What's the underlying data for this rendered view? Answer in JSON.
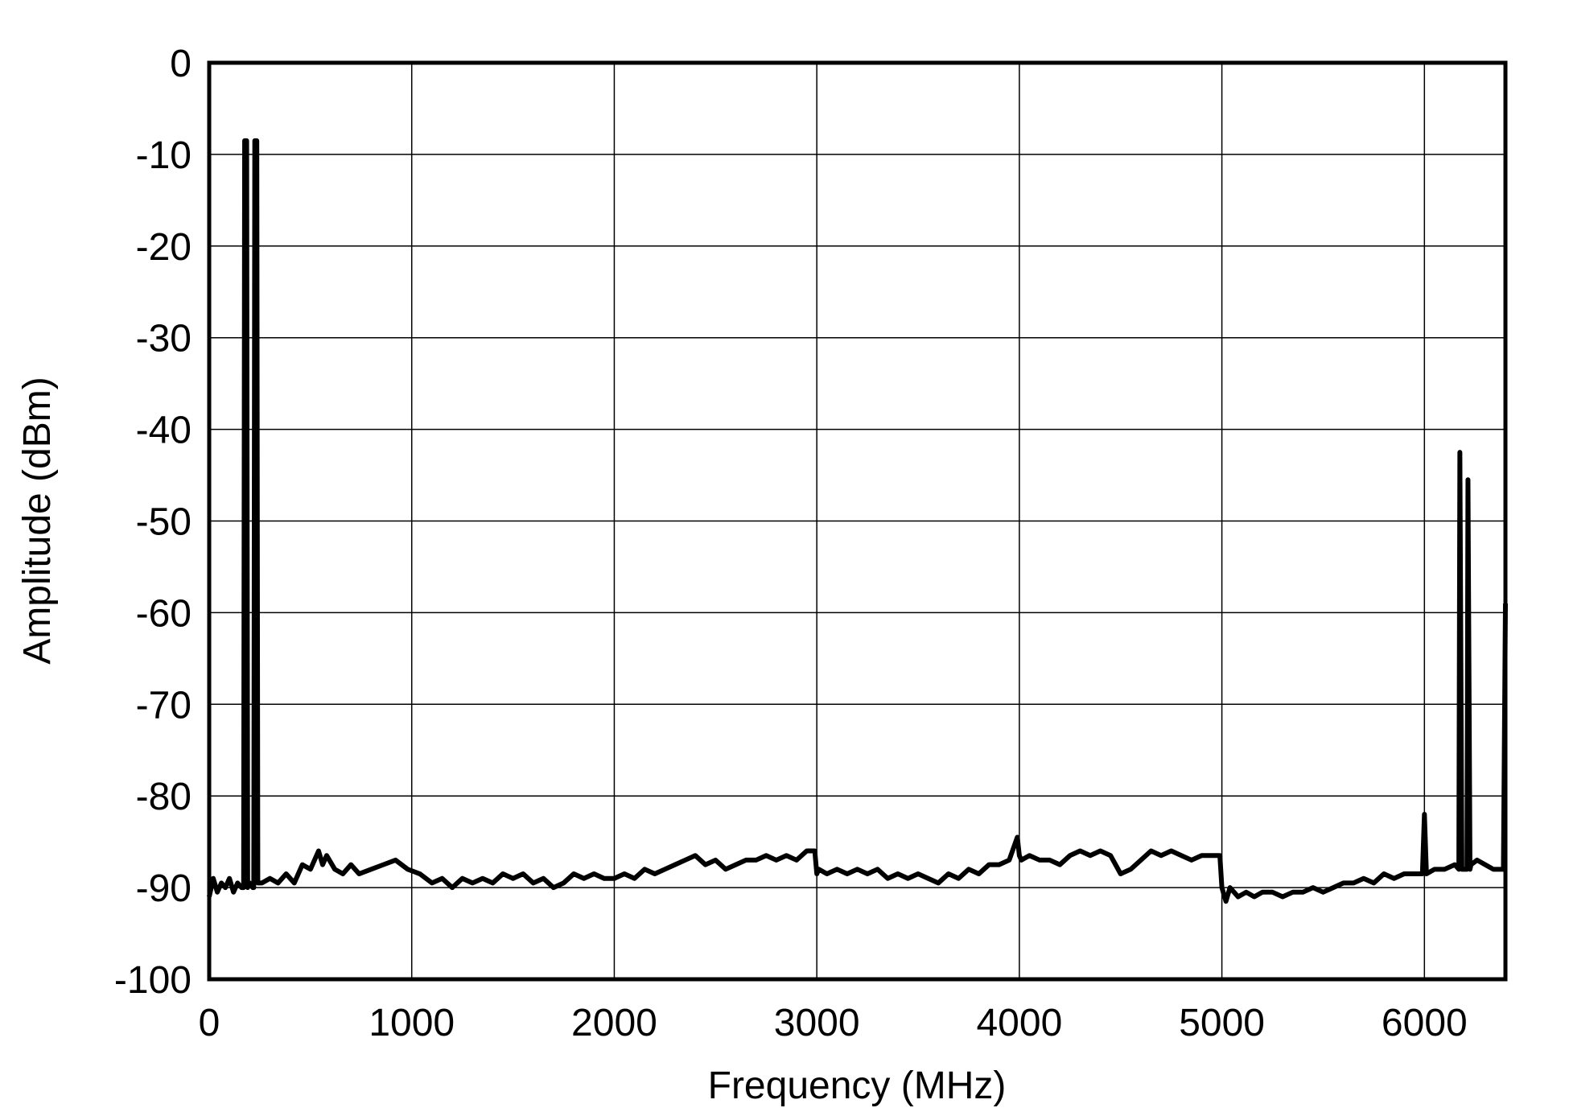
{
  "chart_data": {
    "type": "line",
    "x_label": "Frequency (MHz)",
    "y_label": "Amplitude (dBm)",
    "xlim": [
      0,
      6400
    ],
    "ylim": [
      -100,
      0
    ],
    "xticks": [
      0,
      1000,
      2000,
      3000,
      4000,
      5000,
      6000
    ],
    "yticks": [
      0,
      -10,
      -20,
      -30,
      -40,
      -50,
      -60,
      -70,
      -80,
      -90,
      -100
    ],
    "grid": true,
    "series": [
      {
        "color": "#000000",
        "x": [
          0,
          20,
          40,
          60,
          80,
          100,
          120,
          140,
          160,
          170,
          175,
          185,
          190,
          200,
          215,
          220,
          225,
          235,
          240,
          260,
          300,
          340,
          380,
          420,
          460,
          500,
          540,
          560,
          580,
          620,
          660,
          700,
          740,
          800,
          860,
          920,
          980,
          1040,
          1100,
          1150,
          1200,
          1250,
          1300,
          1350,
          1400,
          1450,
          1500,
          1550,
          1600,
          1650,
          1700,
          1750,
          1800,
          1850,
          1900,
          1950,
          2000,
          2050,
          2100,
          2150,
          2200,
          2250,
          2300,
          2350,
          2400,
          2450,
          2500,
          2550,
          2600,
          2650,
          2700,
          2750,
          2800,
          2850,
          2900,
          2950,
          2990,
          3000,
          3010,
          3050,
          3100,
          3150,
          3200,
          3250,
          3300,
          3350,
          3400,
          3450,
          3500,
          3550,
          3600,
          3650,
          3700,
          3750,
          3800,
          3850,
          3900,
          3950,
          3990,
          4000,
          4010,
          4050,
          4100,
          4150,
          4200,
          4250,
          4300,
          4350,
          4400,
          4450,
          4500,
          4550,
          4600,
          4650,
          4700,
          4750,
          4800,
          4850,
          4900,
          4950,
          4990,
          5000,
          5020,
          5040,
          5080,
          5120,
          5160,
          5200,
          5250,
          5300,
          5350,
          5400,
          5450,
          5500,
          5550,
          5600,
          5650,
          5700,
          5750,
          5800,
          5850,
          5900,
          5950,
          5990,
          6000,
          6010,
          6050,
          6100,
          6150,
          6170,
          6175,
          6185,
          6190,
          6210,
          6215,
          6225,
          6230,
          6260,
          6300,
          6340,
          6380,
          6390,
          6400
        ],
        "values": [
          -91,
          -89,
          -90.5,
          -89.5,
          -90,
          -89,
          -90.5,
          -89.5,
          -90,
          -90,
          -8.5,
          -8.5,
          -90,
          -89.5,
          -90,
          -90,
          -8.5,
          -8.5,
          -89.5,
          -89.5,
          -89,
          -89.5,
          -88.5,
          -89.5,
          -87.5,
          -88,
          -86,
          -87.5,
          -86.5,
          -88,
          -88.5,
          -87.5,
          -88.5,
          -88,
          -87.5,
          -87,
          -88,
          -88.5,
          -89.5,
          -89,
          -90,
          -89,
          -89.5,
          -89,
          -89.5,
          -88.5,
          -89,
          -88.5,
          -89.5,
          -89,
          -90,
          -89.5,
          -88.5,
          -89,
          -88.5,
          -89,
          -89,
          -88.5,
          -89,
          -88,
          -88.5,
          -88,
          -87.5,
          -87,
          -86.5,
          -87.5,
          -87,
          -88,
          -87.5,
          -87,
          -87,
          -86.5,
          -87,
          -86.5,
          -87,
          -86,
          -86,
          -88.5,
          -88,
          -88.5,
          -88,
          -88.5,
          -88,
          -88.5,
          -88,
          -89,
          -88.5,
          -89,
          -88.5,
          -89,
          -89.5,
          -88.5,
          -89,
          -88,
          -88.5,
          -87.5,
          -87.5,
          -87,
          -84.5,
          -86.5,
          -87,
          -86.5,
          -87,
          -87,
          -87.5,
          -86.5,
          -86,
          -86.5,
          -86,
          -86.5,
          -88.5,
          -88,
          -87,
          -86,
          -86.5,
          -86,
          -86.5,
          -87,
          -86.5,
          -86.5,
          -86.5,
          -90,
          -91.5,
          -90,
          -91,
          -90.5,
          -91,
          -90.5,
          -90.5,
          -91,
          -90.5,
          -90.5,
          -90,
          -90.5,
          -90,
          -89.5,
          -89.5,
          -89,
          -89.5,
          -88.5,
          -89,
          -88.5,
          -88.5,
          -88.5,
          -82,
          -88.5,
          -88,
          -88,
          -87.5,
          -88,
          -42.5,
          -88,
          -88,
          -88,
          -45.5,
          -88,
          -87.5,
          -87,
          -87.5,
          -88,
          -88,
          -88,
          -59
        ]
      }
    ]
  }
}
